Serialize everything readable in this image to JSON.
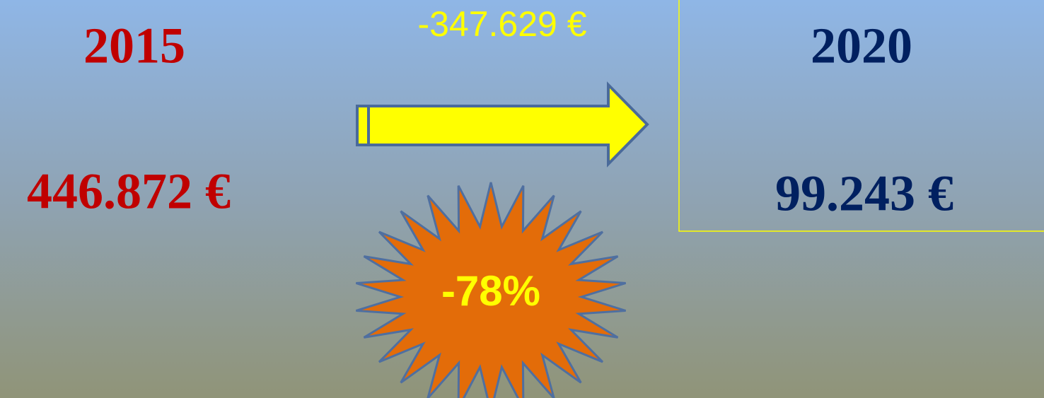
{
  "left": {
    "year": "2015",
    "amount": "446.872 €"
  },
  "change": {
    "amount": "-347.629 €",
    "percent": "-78%"
  },
  "right": {
    "year": "2020",
    "amount": "99.243 €"
  }
}
